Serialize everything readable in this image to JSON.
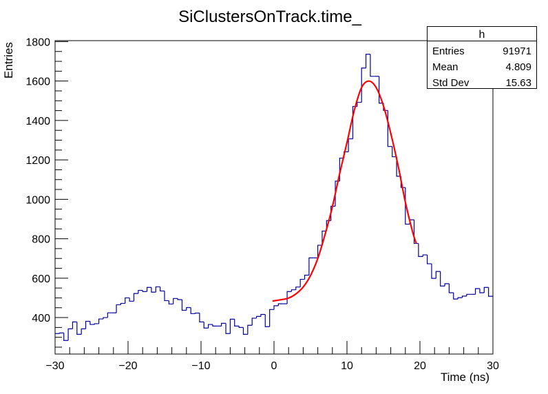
{
  "chart_data": {
    "type": "bar",
    "style": "step-histogram",
    "title": "SiClustersOnTrack.time_",
    "xlabel": "Time (ns)",
    "ylabel": "Entries",
    "xlim": [
      -30,
      30
    ],
    "ylim": [
      215,
      1805
    ],
    "x_ticks": [
      -30,
      -20,
      -10,
      0,
      10,
      20,
      30
    ],
    "x_tick_labels": [
      "−30",
      "−20",
      "−10",
      "0",
      "10",
      "20",
      "30"
    ],
    "y_ticks": [
      400,
      600,
      800,
      1000,
      1200,
      1400,
      1600,
      1800
    ],
    "y_tick_labels": [
      "400",
      "600",
      "800",
      "1000",
      "1200",
      "1400",
      "1600",
      "1800"
    ],
    "grid": false,
    "bin_width": 0.6,
    "histogram_color": "#00009c",
    "fit_color": "#ff0000",
    "bin_contents": [
      319,
      322,
      284,
      343,
      378,
      315,
      343,
      381,
      365,
      369,
      393,
      400,
      424,
      424,
      465,
      472,
      500,
      483,
      522,
      538,
      532,
      553,
      529,
      556,
      535,
      486,
      469,
      497,
      491,
      437,
      451,
      420,
      423,
      378,
      347,
      365,
      357,
      357,
      371,
      319,
      392,
      357,
      350,
      315,
      361,
      397,
      406,
      416,
      354,
      441,
      460,
      470,
      470,
      532,
      541,
      555,
      594,
      615,
      703,
      703,
      767,
      839,
      892,
      965,
      1092,
      1209,
      1241,
      1307,
      1471,
      1492,
      1666,
      1736,
      1624,
      1624,
      1488,
      1451,
      1268,
      1216,
      1117,
      1060,
      874,
      896,
      776,
      710,
      718,
      673,
      599,
      634,
      560,
      572,
      526,
      494,
      501,
      509,
      518,
      518,
      547,
      526,
      553,
      508
    ],
    "fit": {
      "x": [
        -0.2,
        0,
        1,
        2,
        3,
        4,
        5,
        6,
        7,
        8,
        9,
        10,
        11,
        12,
        13,
        14,
        15,
        16,
        17,
        18,
        19,
        19.5
      ],
      "y": [
        485,
        485,
        491,
        499,
        520,
        555,
        613,
        700,
        822,
        962,
        1131,
        1288,
        1451,
        1567,
        1600,
        1567,
        1474,
        1335,
        1172,
        986,
        834,
        776
      ]
    },
    "legend": {
      "placement": "top-right",
      "name": "h",
      "rows": [
        {
          "label": "Entries",
          "value": "91971"
        },
        {
          "label": "Mean",
          "value": "4.809"
        },
        {
          "label": "Std Dev",
          "value": "15.63"
        }
      ]
    }
  }
}
